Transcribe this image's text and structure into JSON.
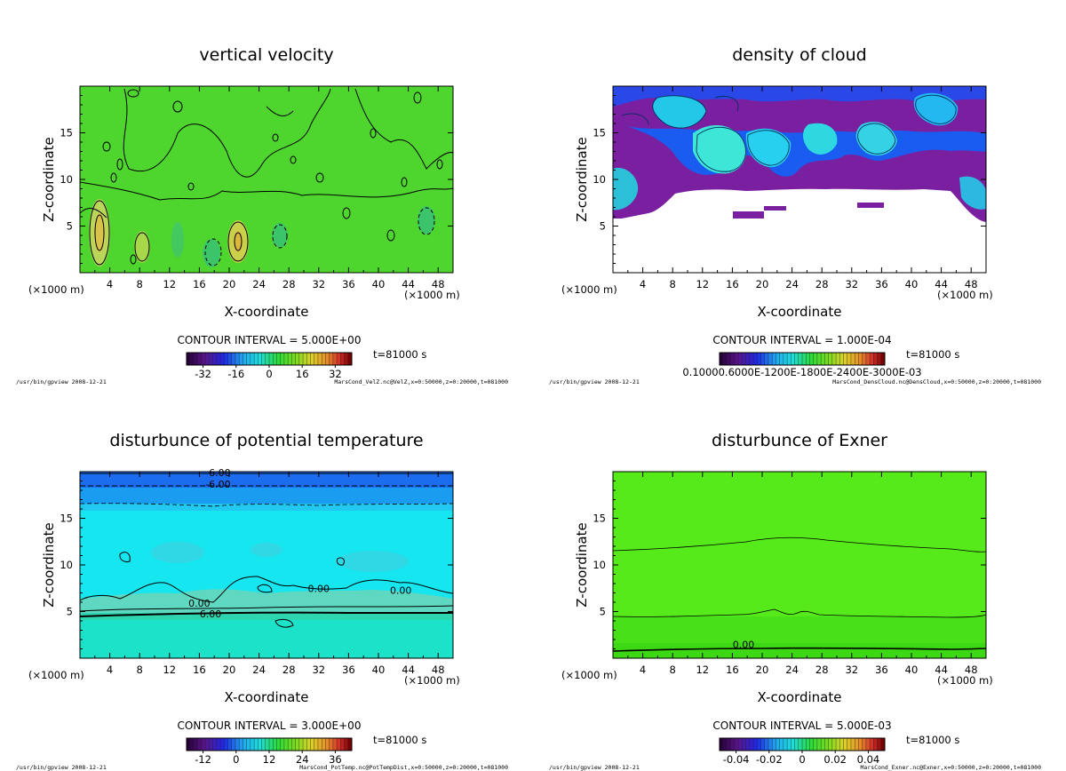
{
  "chart_data": [
    {
      "type": "heatmap",
      "id": "velz",
      "title": "vertical velocity",
      "xlabel": "X-coordinate",
      "ylabel": "Z-coordinate",
      "x_unit": "(×1000 m)",
      "z_unit": "(×1000 m)",
      "xlim": [
        0,
        50
      ],
      "ylim": [
        0,
        20
      ],
      "xticks": [
        4,
        8,
        12,
        16,
        20,
        24,
        28,
        32,
        36,
        40,
        44,
        48
      ],
      "yticks": [
        5,
        10,
        15
      ],
      "contour_interval": "CONTOUR INTERVAL = 5.000E+00",
      "time": "t=81000 s",
      "colorbar": {
        "range": [
          -40,
          40
        ],
        "tick_values": [
          -32,
          -16,
          0,
          16,
          32
        ],
        "tick_labels": [
          "-32",
          "-16",
          "0",
          "16",
          "32"
        ]
      },
      "contour_labels": [],
      "footer_left": "/usr/bin/gpview  2008-12-21",
      "footer_right": "MarsCond_VelZ.nc@VelZ,x=0:50000,z=0:20000,t=081000"
    },
    {
      "type": "heatmap",
      "id": "cloud",
      "title": "density of cloud",
      "xlabel": "X-coordinate",
      "ylabel": "Z-coordinate",
      "x_unit": "(×1000 m)",
      "z_unit": "(×1000 m)",
      "xlim": [
        0,
        50
      ],
      "ylim": [
        0,
        20
      ],
      "xticks": [
        4,
        8,
        12,
        16,
        20,
        24,
        28,
        32,
        36,
        40,
        44,
        48
      ],
      "yticks": [
        5,
        10,
        15
      ],
      "contour_interval": "CONTOUR INTERVAL = 1.000E-04",
      "time": "t=81000 s",
      "colorbar": {
        "range": [
          0,
          1
        ],
        "tick_values": [],
        "tick_labels": [],
        "overlap_label": "0.10000.6000E-1200E-1800E-2400E-3000E-03"
      },
      "contour_labels": [],
      "footer_left": "/usr/bin/gpview  2008-12-21",
      "footer_right": "MarsCond_DensCloud.nc@DensCloud,x=0:50000,z=0:20000,t=081000"
    },
    {
      "type": "heatmap",
      "id": "pottemp",
      "title": "disturbunce of potential temperature",
      "xlabel": "X-coordinate",
      "ylabel": "Z-coordinate",
      "x_unit": "(×1000 m)",
      "z_unit": "(×1000 m)",
      "xlim": [
        0,
        50
      ],
      "ylim": [
        0,
        20
      ],
      "xticks": [
        4,
        8,
        12,
        16,
        20,
        24,
        28,
        32,
        36,
        40,
        44,
        48
      ],
      "yticks": [
        5,
        10,
        15
      ],
      "contour_interval": "CONTOUR INTERVAL = 3.000E+00",
      "time": "t=81000 s",
      "colorbar": {
        "range": [
          -18,
          42
        ],
        "tick_values": [
          -12,
          0,
          12,
          24,
          36
        ],
        "tick_labels": [
          "-12",
          "0",
          "12",
          "24",
          "36"
        ]
      },
      "contour_labels": [
        {
          "text": "-6.00",
          "x": 18.5,
          "z": 19.6
        },
        {
          "text": "-6.00",
          "x": 18.5,
          "z": 18.4
        },
        {
          "text": "0.00",
          "x": 32,
          "z": 7.2
        },
        {
          "text": "0.00",
          "x": 43,
          "z": 7.0
        },
        {
          "text": "0.00",
          "x": 16,
          "z": 5.6
        },
        {
          "text": "6.00",
          "x": 17.5,
          "z": 4.5
        }
      ],
      "footer_left": "/usr/bin/gpview  2008-12-21",
      "footer_right": "MarsCond_PotTemp.nc@PotTempDist,x=0:50000,z=0:20000,t=081000"
    },
    {
      "type": "heatmap",
      "id": "exner",
      "title": "disturbunce of Exner",
      "xlabel": "X-coordinate",
      "ylabel": "Z-coordinate",
      "x_unit": "(×1000 m)",
      "z_unit": "(×1000 m)",
      "xlim": [
        0,
        50
      ],
      "ylim": [
        0,
        20
      ],
      "xticks": [
        4,
        8,
        12,
        16,
        20,
        24,
        28,
        32,
        36,
        40,
        44,
        48
      ],
      "yticks": [
        5,
        10,
        15
      ],
      "contour_interval": "CONTOUR INTERVAL = 5.000E-03",
      "time": "t=81000 s",
      "colorbar": {
        "range": [
          -0.05,
          0.05
        ],
        "tick_values": [
          -0.04,
          -0.02,
          0,
          0.02,
          0.04
        ],
        "tick_labels": [
          "-0.04",
          "-0.02",
          "0",
          "0.02",
          "0.04"
        ]
      },
      "contour_labels": [
        {
          "text": "0.00",
          "x": 17.5,
          "z": 1.2
        }
      ],
      "footer_left": "/usr/bin/gpview  2008-12-21",
      "footer_right": "MarsCond_Exner.nc@Exner,x=0:50000,z=0:20000,t=081000"
    }
  ]
}
